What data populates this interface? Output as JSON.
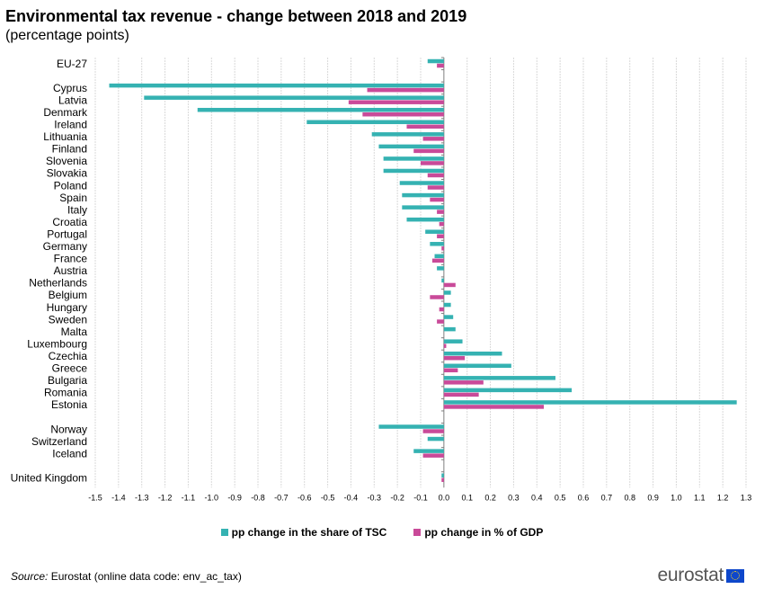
{
  "header": {
    "title": "Environmental tax revenue - change between 2018 and 2019",
    "subtitle": "(percentage points)"
  },
  "footer": {
    "source_label": "Source:",
    "source_text": " Eurostat (online data code: env_ac_tax)",
    "logo_text": "eurostat"
  },
  "colors": {
    "tsc": "#35b2b2",
    "gdp": "#c94a99",
    "grid": "#d9d9d9",
    "axis": "#808080"
  },
  "chart_data": {
    "type": "bar",
    "orientation": "horizontal",
    "title": "Environmental tax revenue - change between 2018 and 2019",
    "subtitle": "(percentage points)",
    "xlabel": "",
    "ylabel": "",
    "xlim": [
      -1.5,
      1.3
    ],
    "xticks": [
      "-1.5",
      "-1.4",
      "-1.3",
      "-1.2",
      "-1.1",
      "-1.0",
      "-0.9",
      "-0.8",
      "-0.7",
      "-0.6",
      "-0.5",
      "-0.4",
      "-0.3",
      "-0.2",
      "-0.1",
      "0.0",
      "0.1",
      "0.2",
      "0.3",
      "0.4",
      "0.5",
      "0.6",
      "0.7",
      "0.8",
      "0.9",
      "1.0",
      "1.1",
      "1.2",
      "1.3"
    ],
    "grid": "vertical",
    "legend_position": "bottom-center",
    "categories": [
      "EU-27",
      "",
      "Cyprus",
      "Latvia",
      "Denmark",
      "Ireland",
      "Lithuania",
      "Finland",
      "Slovenia",
      "Slovakia",
      "Poland",
      "Spain",
      "Italy",
      "Croatia",
      "Portugal",
      "Germany",
      "France",
      "Austria",
      "Netherlands",
      "Belgium",
      "Hungary",
      "Sweden",
      "Malta",
      "Luxembourg",
      "Czechia",
      "Greece",
      "Bulgaria",
      "Romania",
      "Estonia",
      "",
      "Norway",
      "Switzerland",
      "Iceland",
      "",
      "United Kingdom"
    ],
    "series": [
      {
        "name": "pp change in the share of TSC",
        "values": [
          -0.07,
          null,
          -1.44,
          -1.29,
          -1.06,
          -0.59,
          -0.31,
          -0.28,
          -0.26,
          -0.26,
          -0.19,
          -0.18,
          -0.18,
          -0.16,
          -0.08,
          -0.06,
          -0.04,
          -0.03,
          -0.01,
          0.03,
          0.03,
          0.04,
          0.05,
          0.08,
          0.25,
          0.29,
          0.48,
          0.55,
          1.26,
          null,
          -0.28,
          -0.07,
          -0.13,
          null,
          -0.01
        ]
      },
      {
        "name": "pp change in % of GDP",
        "values": [
          -0.03,
          null,
          -0.33,
          -0.41,
          -0.35,
          -0.16,
          -0.09,
          -0.13,
          -0.1,
          -0.07,
          -0.07,
          -0.06,
          -0.03,
          -0.02,
          -0.03,
          -0.01,
          -0.05,
          0.0,
          0.05,
          -0.06,
          -0.02,
          -0.03,
          0.0,
          0.01,
          0.09,
          0.06,
          0.17,
          0.15,
          0.43,
          null,
          -0.09,
          0.0,
          -0.09,
          null,
          -0.01
        ]
      }
    ]
  }
}
